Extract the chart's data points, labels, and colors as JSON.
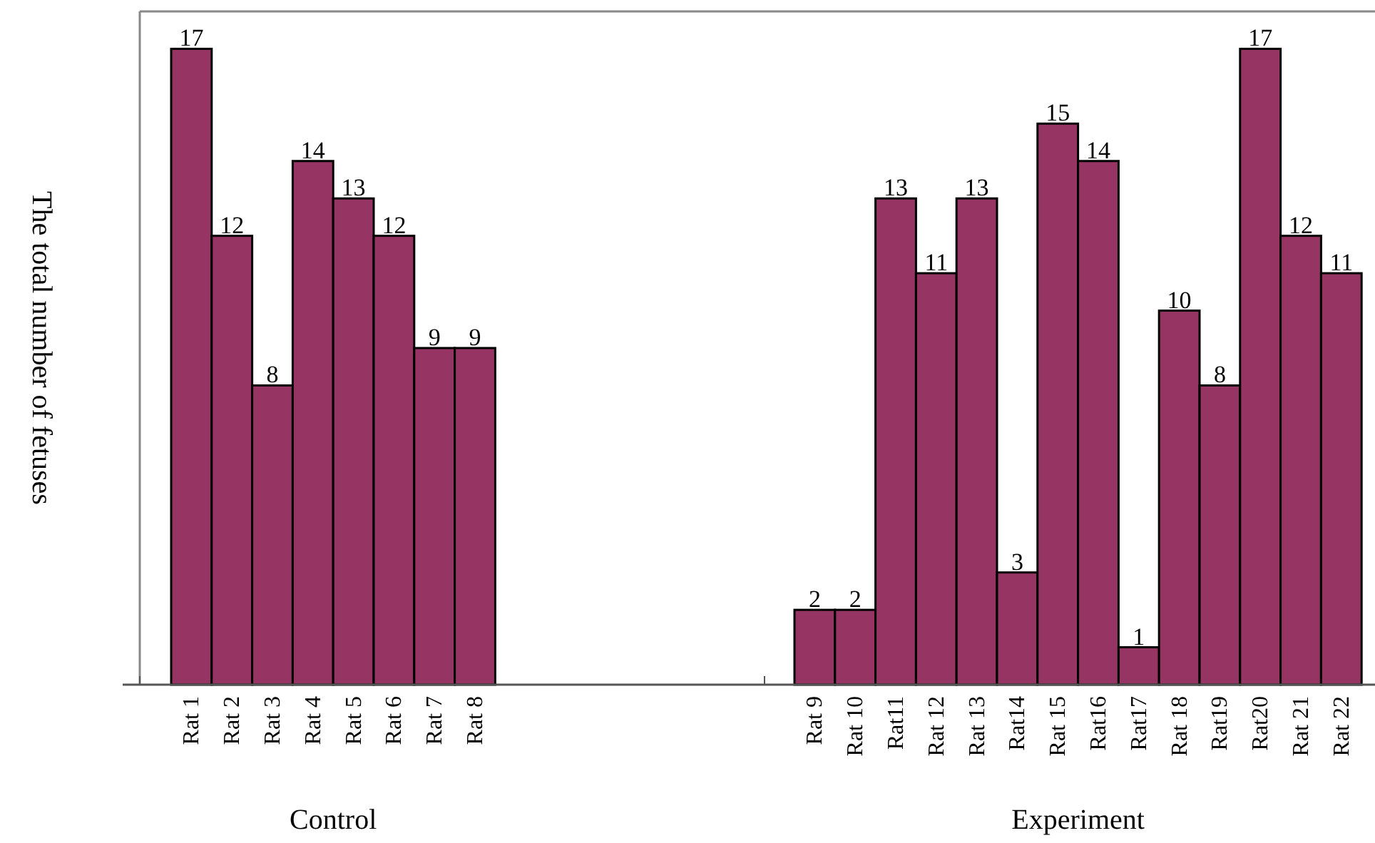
{
  "chart_data": [
    {
      "type": "bar",
      "xlabel": "Control",
      "ylabel": "The total number of fetuses",
      "categories": [
        "Rat 1",
        "Rat 2",
        "Rat 3",
        "Rat 4",
        "Rat 5",
        "Rat 6",
        "Rat 7",
        "Rat 8"
      ],
      "values": [
        17,
        12,
        8,
        14,
        13,
        12,
        9,
        9
      ],
      "color": "#963464",
      "ylim": [
        0,
        18
      ],
      "data_labels": true,
      "tick_labels": "x"
    },
    {
      "type": "bar",
      "xlabel": "Experiment",
      "categories": [
        "Rat 9",
        "Rat 10",
        "Rat11",
        "Rat 12",
        "Rat 13",
        "Rat14",
        "Rat 15",
        "Rat16",
        "Rat17",
        "Rat 18",
        "Rat19",
        "Rat20",
        "Rat 21",
        "Rat 22"
      ],
      "values": [
        2,
        2,
        13,
        11,
        13,
        3,
        15,
        14,
        1,
        10,
        8,
        17,
        12,
        11
      ],
      "color": "#963464",
      "ylim": [
        0,
        18
      ],
      "data_labels": true,
      "tick_labels": "x"
    }
  ]
}
